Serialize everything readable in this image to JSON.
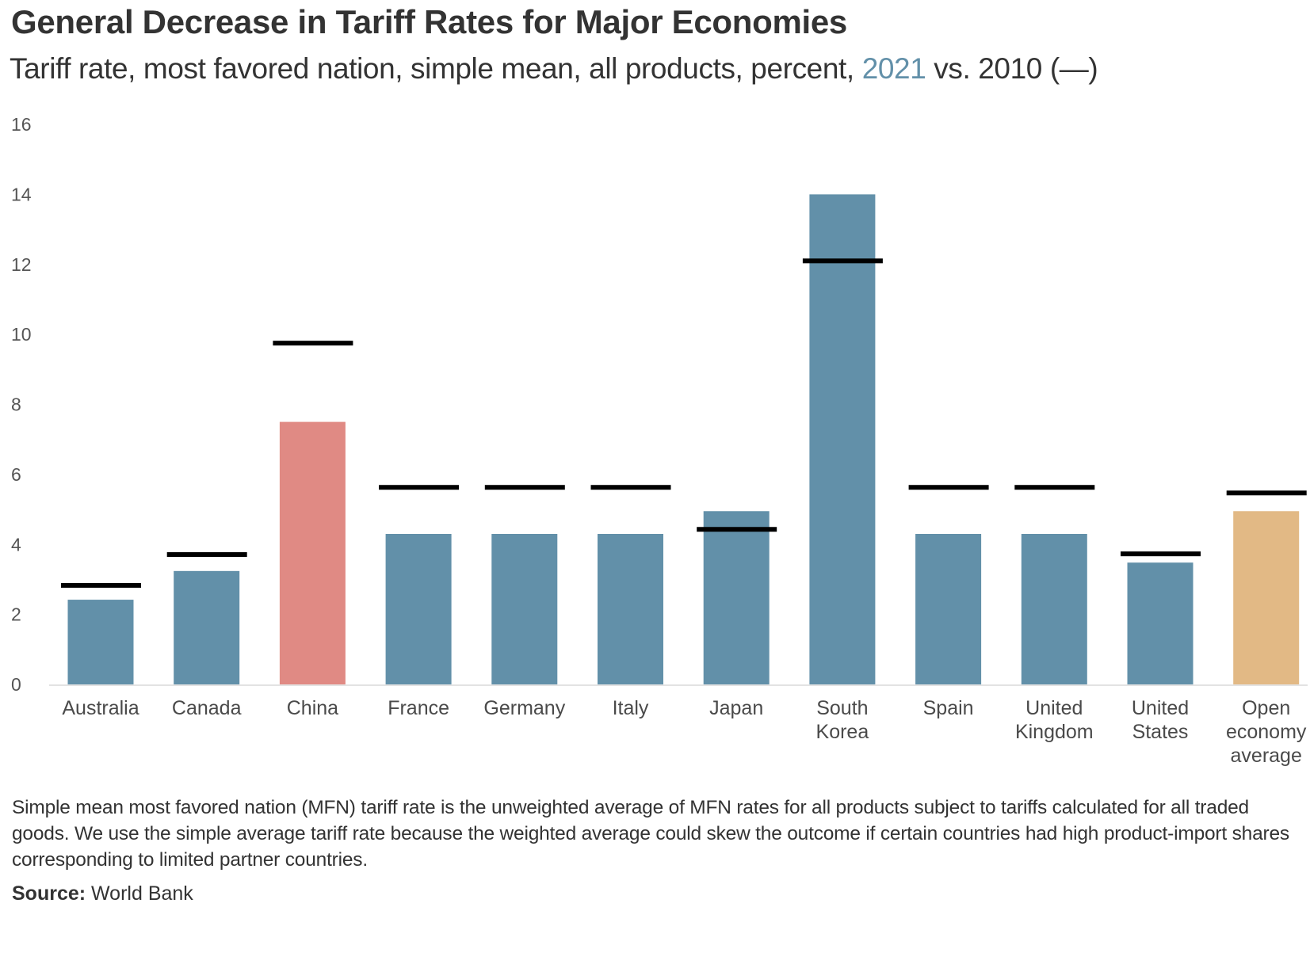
{
  "header": {
    "title": "General Decrease in Tariff Rates for Major Economies",
    "subtitle_prefix": "Tariff rate, most favored nation, simple mean, all products, percent, ",
    "subtitle_highlight": "2021",
    "subtitle_suffix": " vs. 2010 (—)"
  },
  "footer": {
    "note": "Simple mean most favored nation (MFN) tariff rate is the unweighted average of MFN rates for all products subject to tariffs calculated for all traded goods. We use the simple average tariff rate because the weighted average could skew the outcome if certain countries had high product-import shares corresponding to limited partner countries.",
    "source_label": "Source:",
    "source_value": " World Bank"
  },
  "colors": {
    "default_bar": "#6290a9",
    "china_bar": "#e08a84",
    "average_bar": "#e2b985",
    "marker_2010": "#000000",
    "highlight_text": "#6290a9"
  },
  "chart_data": {
    "type": "bar",
    "title": "General Decrease in Tariff Rates for Major Economies",
    "subtitle": "Tariff rate, most favored nation, simple mean, all products, percent, 2021 vs. 2010 (—)",
    "xlabel": "",
    "ylabel": "",
    "ylim": [
      0,
      16
    ],
    "yticks": [
      0,
      2,
      4,
      6,
      8,
      10,
      12,
      14,
      16
    ],
    "grid": false,
    "legend": "inline in subtitle",
    "categories": [
      [
        "Australia"
      ],
      [
        "Canada"
      ],
      [
        "China"
      ],
      [
        "France"
      ],
      [
        "Germany"
      ],
      [
        "Italy"
      ],
      [
        "Japan"
      ],
      [
        "South",
        "Korea"
      ],
      [
        "Spain"
      ],
      [
        "United",
        "Kingdom"
      ],
      [
        "United",
        "States"
      ],
      [
        "Open",
        "economy",
        "average"
      ]
    ],
    "category_names": [
      "Australia",
      "Canada",
      "China",
      "France",
      "Germany",
      "Italy",
      "Japan",
      "South Korea",
      "Spain",
      "United Kingdom",
      "United States",
      "Open economy average"
    ],
    "series": [
      {
        "name": "2021",
        "mark": "bar",
        "values": [
          2.42,
          3.24,
          7.5,
          4.3,
          4.3,
          4.3,
          4.95,
          14.0,
          4.3,
          4.3,
          3.48,
          4.95
        ],
        "colors": [
          "#6290a9",
          "#6290a9",
          "#e08a84",
          "#6290a9",
          "#6290a9",
          "#6290a9",
          "#6290a9",
          "#6290a9",
          "#6290a9",
          "#6290a9",
          "#6290a9",
          "#e2b985"
        ]
      },
      {
        "name": "2010",
        "mark": "horizontal-line",
        "values": [
          2.83,
          3.71,
          9.75,
          5.63,
          5.63,
          5.63,
          4.43,
          12.1,
          5.63,
          5.63,
          3.73,
          5.47
        ],
        "color": "#000000"
      }
    ]
  }
}
